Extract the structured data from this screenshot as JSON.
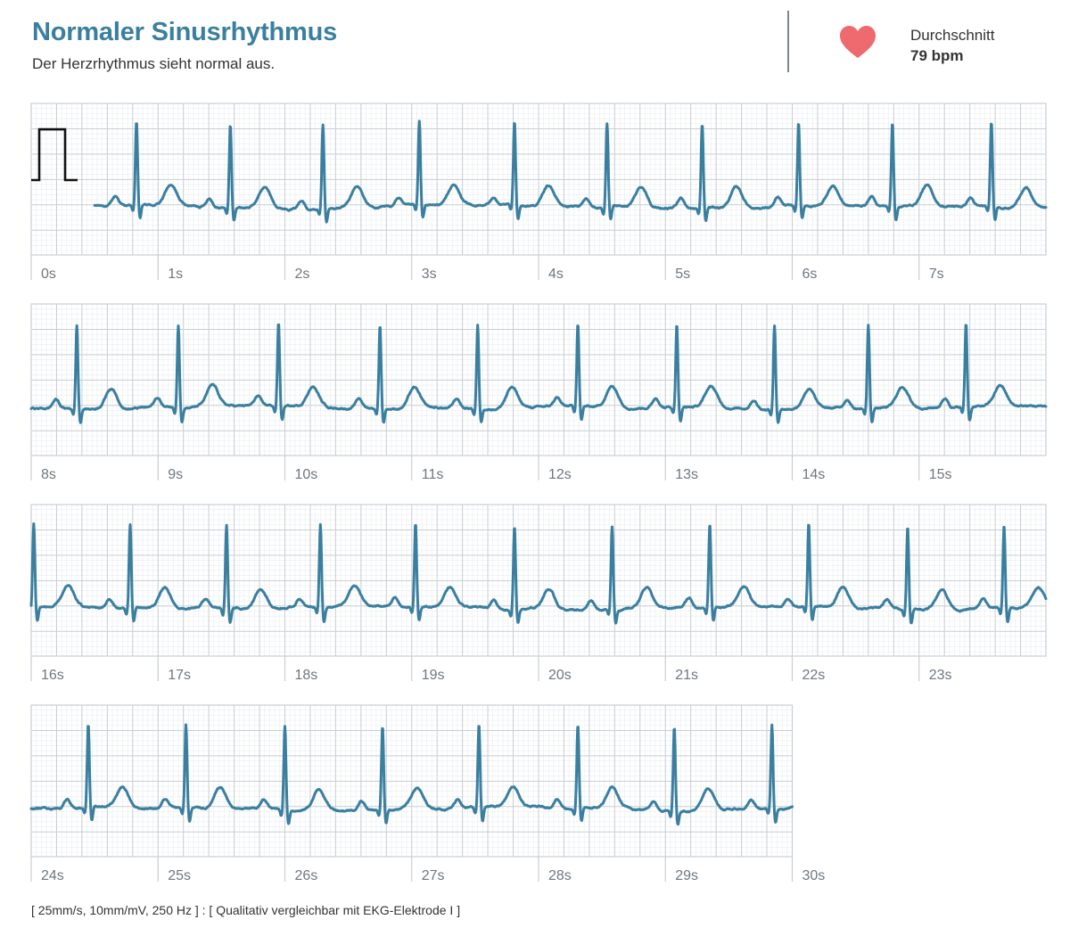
{
  "header": {
    "title": "Normaler Sinusrhythmus",
    "subtitle": "Der Herzrhythmus sieht normal aus.",
    "average_label": "Durchschnitt",
    "average_value": "79 bpm"
  },
  "footer": {
    "note": "[ 25mm/s, 10mm/mV, 250 Hz ] : [ Qualitativ vergleichbar mit EKG-Elektrode I ]"
  },
  "colors": {
    "title": "#3a7fa0",
    "trace": "#3a7fa0",
    "heart": "#ef6a6e",
    "grid_major": "#c8ced4",
    "grid_minor": "#e9ecef",
    "calibration": "#111111"
  },
  "icons": {
    "heart": "heart-icon"
  },
  "chart_data": {
    "type": "line",
    "title": "Normaler Sinusrhythmus",
    "xlabel": "",
    "ylabel": "",
    "x_unit": "s",
    "duration_s": 30,
    "seconds_per_strip": 8,
    "grid": true,
    "paper_speed": "25mm/s",
    "gain": "10mm/mV",
    "sample_rate": "250 Hz",
    "calibration_pulse": {
      "amplitude_mV": 1.0
    },
    "heart_rate_bpm": 79,
    "strips": [
      {
        "tick_labels": [
          "0s",
          "1s",
          "2s",
          "3s",
          "4s",
          "5s",
          "6s",
          "7s"
        ],
        "start_s": 0,
        "end_s": 8,
        "recording_start_s": 0.5,
        "r_peaks_s": [
          0.83,
          1.57,
          2.3,
          3.06,
          3.81,
          4.54,
          5.29,
          6.05,
          6.79,
          7.57
        ]
      },
      {
        "tick_labels": [
          "8s",
          "9s",
          "10s",
          "11s",
          "12s",
          "13s",
          "14s",
          "15s"
        ],
        "start_s": 8,
        "end_s": 16,
        "r_peaks_s": [
          8.36,
          9.16,
          9.95,
          10.75,
          11.52,
          12.31,
          13.09,
          13.86,
          14.6,
          15.37
        ]
      },
      {
        "tick_labels": [
          "16s",
          "17s",
          "18s",
          "19s",
          "20s",
          "21s",
          "22s",
          "23s"
        ],
        "start_s": 16,
        "end_s": 24,
        "r_peaks_s": [
          16.02,
          16.78,
          17.54,
          18.28,
          19.03,
          19.81,
          20.58,
          21.35,
          22.13,
          22.91,
          23.67
        ]
      },
      {
        "tick_labels": [
          "24s",
          "25s",
          "26s",
          "27s",
          "28s",
          "29s",
          "30s"
        ],
        "start_s": 24,
        "end_s": 30,
        "r_peaks_s": [
          24.45,
          25.22,
          26.0,
          26.77,
          27.53,
          28.31,
          29.07,
          29.84
        ]
      }
    ]
  }
}
